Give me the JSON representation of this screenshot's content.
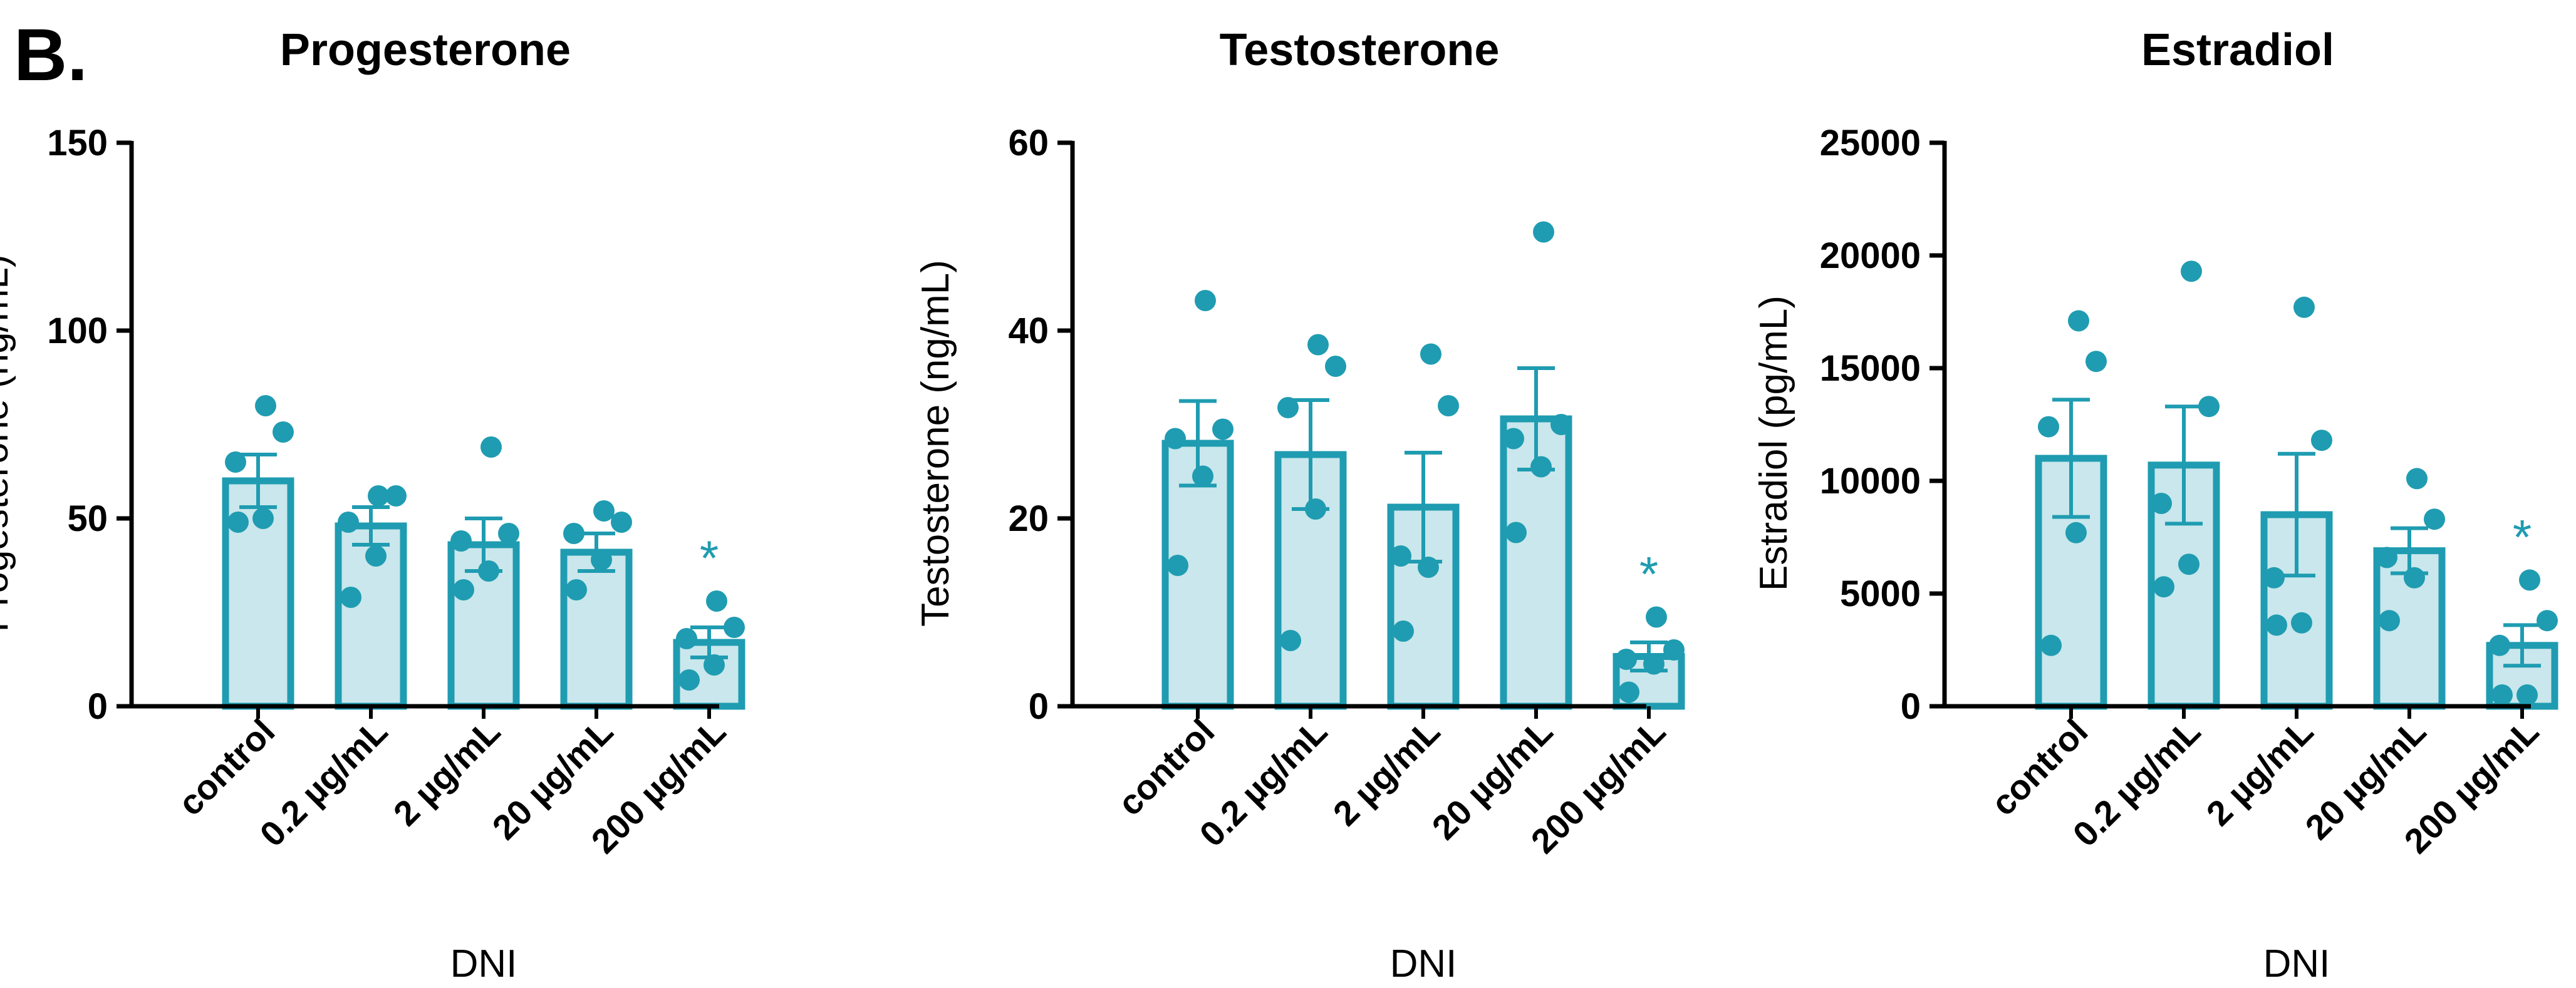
{
  "panel_label": "B.",
  "colors": {
    "bar_fill": "#c9e7ec",
    "accent": "#1f9cb1",
    "axis": "#000000"
  },
  "chart_data": [
    {
      "type": "bar",
      "title": "Progesterone",
      "ylabel": "Progesterone (ng/mL)",
      "xlabel": "DNI",
      "categories": [
        "control",
        "0.2 µg/mL",
        "2 µg/mL",
        "20 µg/mL",
        "200 µg/mL"
      ],
      "values": [
        60,
        48,
        43,
        41,
        17
      ],
      "sem": [
        7,
        5,
        7,
        5,
        4
      ],
      "points": [
        [
          80,
          73,
          65,
          50,
          49
        ],
        [
          56,
          56,
          49,
          40,
          29
        ],
        [
          69,
          46,
          44,
          36,
          31
        ],
        [
          52,
          49,
          46,
          39,
          31
        ],
        [
          28,
          21,
          18,
          11,
          7
        ]
      ],
      "significance": [
        "",
        "",
        "",
        "",
        "*"
      ],
      "ylim": [
        0,
        150
      ],
      "yticks": [
        0,
        50,
        100,
        150
      ]
    },
    {
      "type": "bar",
      "title": "Testosterone",
      "ylabel": "Testosterone (ng/mL)",
      "xlabel": "DNI",
      "categories": [
        "control",
        "0.2 µg/mL",
        "2 µg/mL",
        "20 µg/mL",
        "200 µg/mL"
      ],
      "values": [
        28,
        26.8,
        21.2,
        30.6,
        5.3
      ],
      "sem": [
        4.5,
        5.8,
        5.8,
        5.4,
        1.5
      ],
      "points": [
        [
          43.2,
          29.5,
          28.5,
          24.5,
          15
        ],
        [
          38.5,
          36.2,
          31.8,
          21,
          7
        ],
        [
          37.5,
          32,
          16,
          14.8,
          8
        ],
        [
          50.5,
          30,
          28.5,
          25.5,
          18.5
        ],
        [
          9.5,
          6,
          5,
          4.5,
          1.5
        ]
      ],
      "significance": [
        "",
        "",
        "",
        "",
        "*"
      ],
      "ylim": [
        0,
        60
      ],
      "yticks": [
        0,
        20,
        40,
        60
      ]
    },
    {
      "type": "bar",
      "title": "Estradiol",
      "ylabel": "Estradiol (pg/mL)",
      "xlabel": "DNI",
      "categories": [
        "control",
        "0.2 µg/mL",
        "2 µg/mL",
        "20 µg/mL",
        "200 µg/mL"
      ],
      "values": [
        11000,
        10700,
        8500,
        6900,
        2700
      ],
      "sem": [
        2600,
        2600,
        2700,
        1000,
        900
      ],
      "points": [
        [
          17100,
          15300,
          12400,
          7700,
          2700
        ],
        [
          19300,
          13300,
          9000,
          6300,
          5300
        ],
        [
          17700,
          11800,
          5700,
          3700,
          3600
        ],
        [
          10100,
          8300,
          6600,
          5700,
          3800
        ],
        [
          5600,
          3800,
          2700,
          500,
          500
        ]
      ],
      "significance": [
        "",
        "",
        "",
        "",
        "*"
      ],
      "ylim": [
        0,
        25000
      ],
      "yticks": [
        0,
        5000,
        10000,
        15000,
        20000,
        25000
      ]
    }
  ]
}
